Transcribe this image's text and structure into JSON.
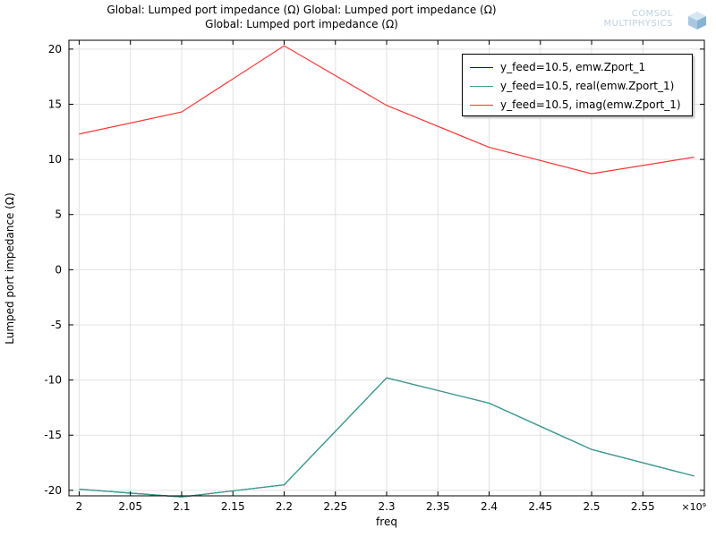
{
  "header": {
    "title_line1": "Global: Lumped port impedance (Ω)  Global: Lumped port impedance (Ω)",
    "title_line2": "Global: Lumped port impedance (Ω)"
  },
  "logo": {
    "line1": "COMSOL",
    "line2": "MULTIPHYSICS",
    "icon": "comsol-cube-icon"
  },
  "chart_data": {
    "type": "line",
    "xlabel": "freq",
    "ylabel": "Lumped port impedance (Ω)",
    "x_exponent_label": "×10⁹",
    "xlim": [
      1.99,
      2.61
    ],
    "ylim": [
      -20.5,
      20.8
    ],
    "x_ticks": [
      "2",
      "2.05",
      "2.1",
      "2.15",
      "2.2",
      "2.25",
      "2.3",
      "2.35",
      "2.4",
      "2.45",
      "2.5",
      "2.55"
    ],
    "y_ticks": [
      "20",
      "15",
      "10",
      "5",
      "0",
      "-5",
      "-10",
      "-15",
      "-20"
    ],
    "grid": true,
    "legend_position": "top-right",
    "x": [
      2.0,
      2.1,
      2.2,
      2.3,
      2.4,
      2.5,
      2.6
    ],
    "series": [
      {
        "name": "y_feed=10.5, emw.Zport_1",
        "color": "#0000ff",
        "values": [
          -19.9,
          -20.6,
          -19.5,
          -9.8,
          -12.1,
          -16.3,
          -18.7
        ]
      },
      {
        "name": "y_feed=10.5, real(emw.Zport_1)",
        "color": "#3aa67a",
        "values": [
          -19.9,
          -20.6,
          -19.5,
          -9.8,
          -12.1,
          -16.3,
          -18.7
        ]
      },
      {
        "name": "y_feed=10.5, imag(emw.Zport_1)",
        "color": "#ff3333",
        "values": [
          12.3,
          14.3,
          20.3,
          14.9,
          11.1,
          8.7,
          10.2
        ]
      }
    ]
  }
}
